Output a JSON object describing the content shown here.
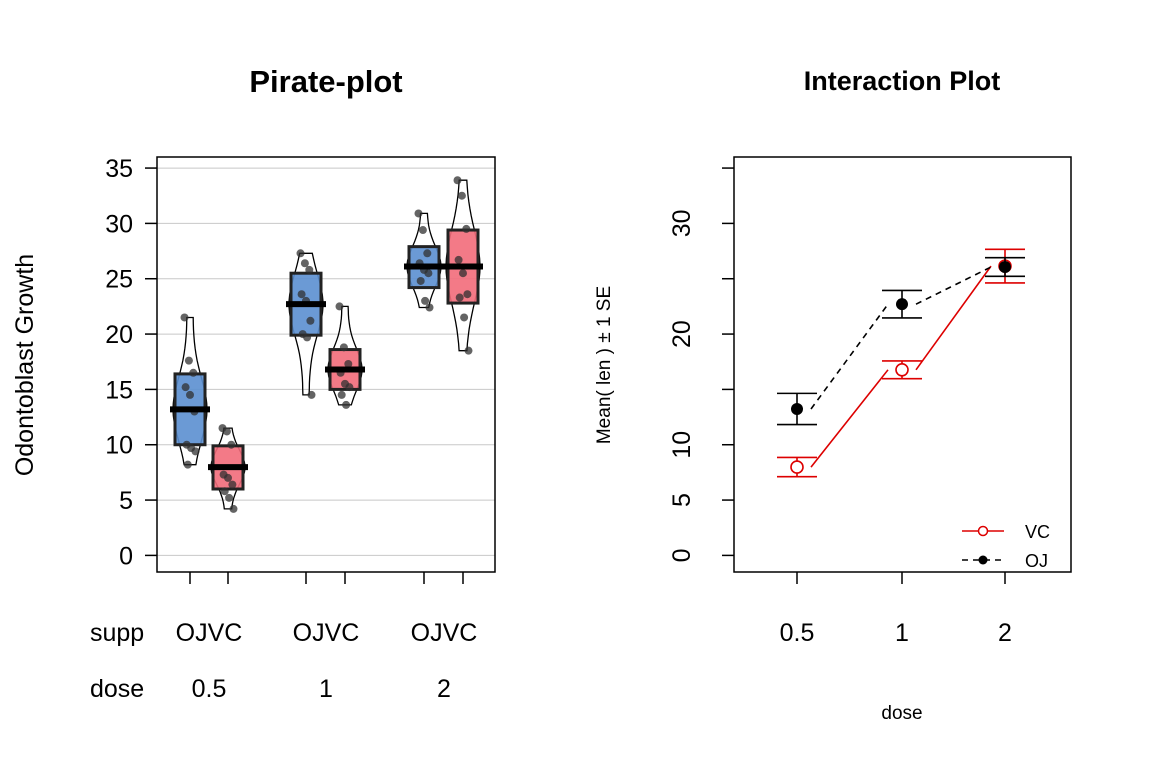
{
  "colors": {
    "oj_fill": "#5b8fd0",
    "vc_fill": "#f26c7a",
    "vc_line": "#dd0000",
    "oj_line": "#000000",
    "grid": "#c8c8c8",
    "point": "#303030"
  },
  "chart_data": [
    {
      "type": "pirate",
      "title": "Pirate-plot",
      "ylabel": "Odontoblast Growth",
      "ylim": [
        -1.5,
        36
      ],
      "yticks": [
        0,
        5,
        10,
        15,
        20,
        25,
        30,
        35
      ],
      "row_labels": {
        "supp": "supp",
        "dose": "dose"
      },
      "supp_pair_label": "OJVC",
      "groups": [
        {
          "dose": "0.5",
          "bars": [
            {
              "supp": "OJ",
              "mean": 13.2,
              "ci": [
                10.0,
                16.4
              ],
              "range": [
                8.2,
                21.5
              ],
              "points": [
                21.5,
                17.6,
                16.5,
                15.2,
                14.5,
                13.0,
                10.0,
                9.7,
                9.4,
                8.2
              ]
            },
            {
              "supp": "VC",
              "mean": 7.98,
              "ci": [
                6.0,
                9.9
              ],
              "range": [
                4.2,
                11.5
              ],
              "points": [
                11.5,
                11.2,
                10.0,
                7.3,
                7.0,
                6.4,
                5.8,
                5.2,
                4.2
              ]
            }
          ]
        },
        {
          "dose": "1",
          "bars": [
            {
              "supp": "OJ",
              "mean": 22.7,
              "ci": [
                19.9,
                25.5
              ],
              "range": [
                14.5,
                27.3
              ],
              "points": [
                27.3,
                26.4,
                25.8,
                23.6,
                23.0,
                21.2,
                20.0,
                19.7,
                14.5
              ]
            },
            {
              "supp": "VC",
              "mean": 16.8,
              "ci": [
                15.0,
                18.6
              ],
              "range": [
                13.6,
                22.5
              ],
              "points": [
                22.5,
                18.8,
                17.3,
                16.5,
                15.5,
                15.2,
                14.5,
                13.6
              ]
            }
          ]
        },
        {
          "dose": "2",
          "bars": [
            {
              "supp": "OJ",
              "mean": 26.1,
              "ci": [
                24.2,
                27.9
              ],
              "range": [
                22.4,
                30.9
              ],
              "points": [
                30.9,
                29.4,
                27.3,
                26.4,
                25.8,
                25.5,
                24.8,
                23.0,
                22.4
              ]
            },
            {
              "supp": "VC",
              "mean": 26.1,
              "ci": [
                22.8,
                29.4
              ],
              "range": [
                18.5,
                33.9
              ],
              "points": [
                33.9,
                32.5,
                29.5,
                26.7,
                25.5,
                23.6,
                23.3,
                21.5,
                18.5
              ]
            }
          ]
        }
      ]
    },
    {
      "type": "line",
      "title": "Interaction Plot",
      "xlabel": "dose",
      "ylabel": "Mean( len ) ± 1 SE",
      "categories": [
        "0.5",
        "1",
        "2"
      ],
      "ylim": [
        -1.5,
        36
      ],
      "yticks": [
        0,
        5,
        10,
        20,
        30
      ],
      "series": [
        {
          "name": "VC",
          "values": [
            7.98,
            16.77,
            26.14
          ],
          "se": [
            0.87,
            0.8,
            1.52
          ],
          "marker": "open-circle",
          "style": "solid",
          "color": "#dd0000"
        },
        {
          "name": "OJ",
          "values": [
            13.23,
            22.7,
            26.06
          ],
          "se": [
            1.41,
            1.24,
            0.84
          ],
          "marker": "filled-circle",
          "style": "dashed",
          "color": "#000000"
        }
      ]
    }
  ]
}
